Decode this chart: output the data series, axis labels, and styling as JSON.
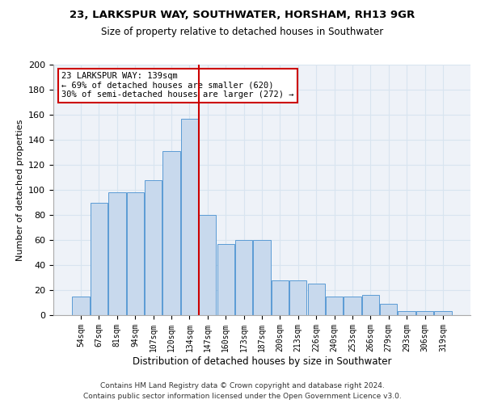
{
  "title": "23, LARKSPUR WAY, SOUTHWATER, HORSHAM, RH13 9GR",
  "subtitle": "Size of property relative to detached houses in Southwater",
  "xlabel": "Distribution of detached houses by size in Southwater",
  "ylabel": "Number of detached properties",
  "categories": [
    "54sqm",
    "67sqm",
    "81sqm",
    "94sqm",
    "107sqm",
    "120sqm",
    "134sqm",
    "147sqm",
    "160sqm",
    "173sqm",
    "187sqm",
    "200sqm",
    "213sqm",
    "226sqm",
    "240sqm",
    "253sqm",
    "266sqm",
    "279sqm",
    "293sqm",
    "306sqm",
    "319sqm"
  ],
  "values": [
    15,
    90,
    98,
    98,
    108,
    131,
    157,
    80,
    57,
    60,
    60,
    28,
    28,
    25,
    15,
    15,
    16,
    9,
    3,
    3,
    3
  ],
  "bar_color": "#c8d9ed",
  "bar_edge_color": "#5b9bd5",
  "annotation_line1": "23 LARKSPUR WAY: 139sqm",
  "annotation_line2": "← 69% of detached houses are smaller (620)",
  "annotation_line3": "30% of semi-detached houses are larger (272) →",
  "annotation_box_color": "#ffffff",
  "annotation_box_edge_color": "#cc0000",
  "vline_color": "#cc0000",
  "grid_color": "#d8e4f0",
  "bg_color": "#eef2f8",
  "footer_line1": "Contains HM Land Registry data © Crown copyright and database right 2024.",
  "footer_line2": "Contains public sector information licensed under the Open Government Licence v3.0.",
  "ylim": [
    0,
    200
  ],
  "yticks": [
    0,
    20,
    40,
    60,
    80,
    100,
    120,
    140,
    160,
    180,
    200
  ]
}
